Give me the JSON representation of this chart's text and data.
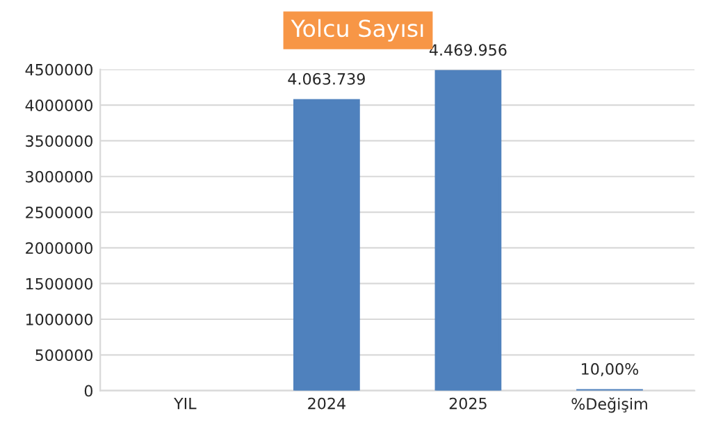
{
  "chart_data": {
    "type": "bar",
    "title": "Yolcu Sayısı",
    "categories": [
      "YIL",
      "2024",
      "2025",
      "%Değişim"
    ],
    "values": [
      null,
      4063739,
      4469956,
      10
    ],
    "value_labels": [
      null,
      "4.063.739",
      "4.469.956",
      "10,00%"
    ],
    "color": "#4f81bd",
    "ylim": [
      0,
      4500000
    ],
    "yticks": [
      0,
      500000,
      1000000,
      1500000,
      2000000,
      2500000,
      3000000,
      3500000,
      4000000,
      4500000
    ],
    "grid": "y",
    "legend": false
  }
}
